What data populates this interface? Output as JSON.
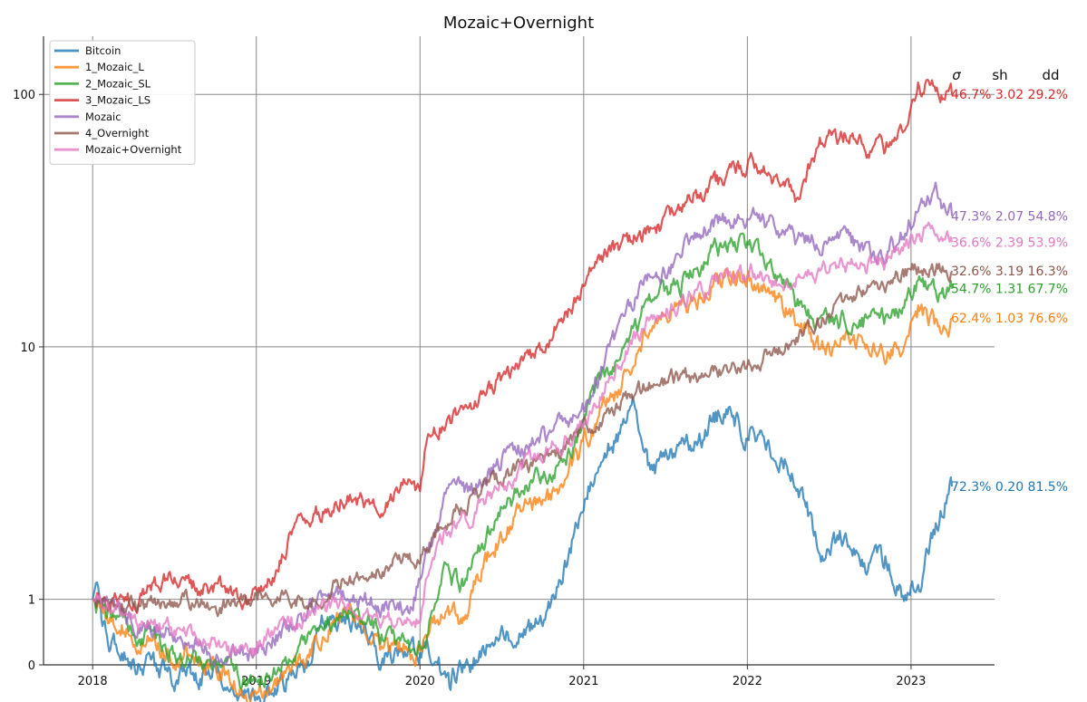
{
  "chart_data": {
    "type": "line",
    "title": "Mozaic+Overnight",
    "xlabel": "",
    "ylabel": "",
    "y_scale": "log",
    "ylim": [
      0.55,
      170
    ],
    "xlim": [
      2017.7,
      2023.51
    ],
    "grid": true,
    "legend_position": "top-left",
    "x_ticks": [
      2018,
      2019,
      2020,
      2021,
      2022,
      2023
    ],
    "y_ticks": [
      1,
      10,
      100
    ],
    "y_zero_label": "0",
    "stat_headers": [
      "σ",
      "sh",
      "dd"
    ],
    "series": [
      {
        "name": "Bitcoin",
        "color": "#1f77b4",
        "stats": "72.3% 0.20 81.5%",
        "x": [
          2018.0,
          2018.02,
          2018.06,
          2018.15,
          2018.3,
          2018.5,
          2018.75,
          2018.95,
          2019.1,
          2019.3,
          2019.45,
          2019.6,
          2019.75,
          2019.9,
          2020.05,
          2020.18,
          2020.2,
          2020.35,
          2020.5,
          2020.65,
          2020.8,
          2020.9,
          2021.0,
          2021.15,
          2021.3,
          2021.4,
          2021.55,
          2021.7,
          2021.85,
          2022.0,
          2022.15,
          2022.3,
          2022.45,
          2022.6,
          2022.75,
          2022.85,
          2022.95,
          2023.05,
          2023.18,
          2023.25
        ],
        "values": [
          1.0,
          1.15,
          0.78,
          0.62,
          0.55,
          0.5,
          0.5,
          0.4,
          0.42,
          0.55,
          0.9,
          0.8,
          0.62,
          0.6,
          0.65,
          0.45,
          0.48,
          0.58,
          0.72,
          0.72,
          0.95,
          1.4,
          2.5,
          4.0,
          5.5,
          3.2,
          3.6,
          4.2,
          5.6,
          4.6,
          4.0,
          3.1,
          1.5,
          1.8,
          1.3,
          1.45,
          1.05,
          1.2,
          2.2,
          2.8
        ]
      },
      {
        "name": "1_Mozaic_L",
        "color": "#ff7f0e",
        "stats": "62.4% 1.03 76.6%",
        "x": [
          2018.0,
          2018.1,
          2018.3,
          2018.5,
          2018.75,
          2018.95,
          2019.1,
          2019.3,
          2019.5,
          2019.65,
          2019.8,
          2019.95,
          2020.05,
          2020.15,
          2020.25,
          2020.35,
          2020.5,
          2020.65,
          2020.8,
          2020.95,
          2021.1,
          2021.25,
          2021.4,
          2021.6,
          2021.8,
          2022.0,
          2022.15,
          2022.3,
          2022.45,
          2022.6,
          2022.75,
          2022.95,
          2023.05,
          2023.15,
          2023.25
        ],
        "values": [
          1.0,
          0.85,
          0.68,
          0.6,
          0.55,
          0.43,
          0.45,
          0.6,
          0.9,
          0.85,
          0.65,
          0.62,
          0.7,
          0.95,
          0.8,
          1.2,
          1.8,
          2.3,
          2.5,
          3.5,
          5.5,
          7.5,
          12.0,
          14.0,
          18.0,
          19.0,
          16.0,
          13.0,
          9.5,
          10.5,
          9.8,
          10.2,
          14.5,
          12.5,
          13.0
        ]
      },
      {
        "name": "2_Mozaic_SL",
        "color": "#2ca02c",
        "stats": "54.7% 1.31 67.7%",
        "x": [
          2018.0,
          2018.1,
          2018.3,
          2018.5,
          2018.75,
          2018.95,
          2019.1,
          2019.3,
          2019.5,
          2019.65,
          2019.8,
          2019.95,
          2020.05,
          2020.15,
          2020.25,
          2020.35,
          2020.5,
          2020.65,
          2020.8,
          2020.95,
          2021.1,
          2021.25,
          2021.4,
          2021.6,
          2021.8,
          2022.0,
          2022.15,
          2022.3,
          2022.45,
          2022.6,
          2022.75,
          2022.95,
          2023.05,
          2023.15,
          2023.25
        ],
        "values": [
          1.0,
          0.88,
          0.72,
          0.63,
          0.56,
          0.46,
          0.5,
          0.65,
          0.92,
          0.82,
          0.7,
          0.65,
          0.75,
          1.3,
          1.1,
          1.5,
          2.3,
          2.8,
          3.1,
          4.2,
          7.5,
          10.0,
          15.0,
          18.0,
          24.0,
          26.0,
          19.0,
          15.0,
          12.0,
          13.0,
          12.5,
          14.0,
          19.0,
          16.0,
          17.0
        ]
      },
      {
        "name": "3_Mozaic_LS",
        "color": "#d62728",
        "stats": "46.7% 3.02 29.2%",
        "x": [
          2018.0,
          2018.1,
          2018.3,
          2018.5,
          2018.6,
          2018.8,
          2018.95,
          2019.1,
          2019.25,
          2019.4,
          2019.55,
          2019.7,
          2019.85,
          2020.0,
          2020.05,
          2020.15,
          2020.3,
          2020.5,
          2020.7,
          2020.9,
          2021.05,
          2021.2,
          2021.4,
          2021.55,
          2021.7,
          2021.85,
          2022.0,
          2022.15,
          2022.3,
          2022.45,
          2022.6,
          2022.75,
          2022.85,
          2022.95,
          2023.05,
          2023.15,
          2023.25
        ],
        "values": [
          1.0,
          0.95,
          1.0,
          1.3,
          1.1,
          1.15,
          1.0,
          1.2,
          2.0,
          2.2,
          2.6,
          2.3,
          2.7,
          2.8,
          4.5,
          5.0,
          5.5,
          7.5,
          9.5,
          13.0,
          20.0,
          25.0,
          28.0,
          33.0,
          40.0,
          45.0,
          55.0,
          48.0,
          40.0,
          65.0,
          68.0,
          58.0,
          62.0,
          75.0,
          110.0,
          105.0,
          100.0
        ]
      },
      {
        "name": "Mozaic",
        "color": "#9467bd",
        "stats": "47.3% 2.07 54.8%",
        "x": [
          2018.0,
          2018.1,
          2018.3,
          2018.5,
          2018.75,
          2018.95,
          2019.1,
          2019.3,
          2019.45,
          2019.6,
          2019.8,
          2019.95,
          2020.05,
          2020.15,
          2020.3,
          2020.5,
          2020.7,
          2020.9,
          2021.05,
          2021.2,
          2021.35,
          2021.55,
          2021.7,
          2021.85,
          2022.0,
          2022.15,
          2022.3,
          2022.45,
          2022.6,
          2022.75,
          2022.85,
          2022.95,
          2023.05,
          2023.15,
          2023.25
        ],
        "values": [
          1.0,
          0.9,
          0.8,
          0.72,
          0.62,
          0.6,
          0.7,
          0.9,
          1.1,
          1.0,
          0.92,
          0.95,
          1.6,
          2.5,
          2.7,
          3.6,
          4.2,
          5.0,
          6.5,
          11.0,
          17.0,
          21.0,
          30.0,
          32.0,
          34.0,
          30.0,
          26.0,
          26.0,
          27.0,
          23.0,
          24.0,
          28.0,
          36.0,
          40.0,
          33.0
        ]
      },
      {
        "name": "4_Overnight",
        "color": "#8c564b",
        "stats": "32.6% 3.19 16.3%",
        "x": [
          2018.0,
          2018.2,
          2018.4,
          2018.6,
          2018.8,
          2018.95,
          2019.1,
          2019.3,
          2019.4,
          2019.55,
          2019.7,
          2019.85,
          2020.0,
          2020.05,
          2020.15,
          2020.3,
          2020.5,
          2020.7,
          2020.9,
          2021.05,
          2021.2,
          2021.4,
          2021.6,
          2021.8,
          2022.0,
          2022.2,
          2022.4,
          2022.6,
          2022.8,
          2023.0,
          2023.1,
          2023.25
        ],
        "values": [
          1.0,
          0.92,
          0.95,
          0.98,
          0.95,
          1.02,
          1.05,
          1.0,
          1.05,
          1.2,
          1.3,
          1.4,
          1.5,
          1.6,
          2.0,
          2.5,
          3.0,
          3.5,
          4.0,
          5.0,
          6.0,
          7.0,
          7.5,
          8.0,
          8.5,
          10.0,
          12.0,
          15.0,
          18.0,
          20.0,
          21.0,
          20.0
        ]
      },
      {
        "name": "Mozaic+Overnight",
        "color": "#e377c2",
        "stats": "36.6% 2.39 53.9%",
        "x": [
          2018.0,
          2018.1,
          2018.3,
          2018.5,
          2018.75,
          2018.95,
          2019.1,
          2019.3,
          2019.5,
          2019.7,
          2019.9,
          2020.0,
          2020.05,
          2020.15,
          2020.3,
          2020.5,
          2020.7,
          2020.9,
          2021.05,
          2021.2,
          2021.4,
          2021.6,
          2021.8,
          2022.0,
          2022.2,
          2022.4,
          2022.6,
          2022.8,
          2023.0,
          2023.1,
          2023.25
        ],
        "values": [
          1.0,
          0.9,
          0.82,
          0.75,
          0.65,
          0.62,
          0.72,
          0.85,
          0.95,
          0.85,
          0.82,
          0.85,
          1.3,
          1.8,
          2.1,
          2.8,
          3.6,
          4.3,
          5.5,
          8.5,
          12.5,
          15.0,
          18.0,
          20.0,
          18.0,
          20.0,
          21.0,
          21.0,
          26.0,
          29.0,
          26.0
        ]
      }
    ]
  }
}
